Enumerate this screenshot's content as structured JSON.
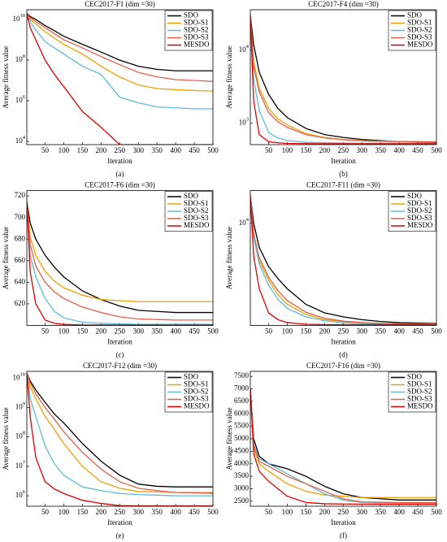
{
  "chart_data": [
    {
      "type": "line",
      "title": "CEC2017-F1 (dim =30)",
      "xlabel": "Iteration",
      "ylabel": "Average fitness value",
      "caption": "(a)",
      "yscale": "log",
      "legend": "upper right",
      "xlim": [
        1,
        500
      ],
      "xticks": [
        50,
        100,
        150,
        200,
        250,
        300,
        350,
        400,
        450,
        500
      ],
      "ylim": [
        7000,
        30000000000
      ],
      "yticks": [
        {
          "value": 10000,
          "label": "10^4"
        },
        {
          "value": 1000000,
          "label": "10^6"
        },
        {
          "value": 100000000,
          "label": "10^8"
        },
        {
          "value": 10000000000,
          "label": "10^10"
        }
      ],
      "x": [
        1,
        10,
        25,
        50,
        75,
        100,
        150,
        200,
        250,
        300,
        350,
        400,
        450,
        500
      ],
      "series": [
        {
          "name": "SDO",
          "color": "#000000",
          "values": [
            20000000000.0,
            14000000000.0,
            10000000000.0,
            5000000000.0,
            2800000000.0,
            1500000000.0,
            600000000.0,
            250000000.0,
            100000000.0,
            50000000.0,
            35000000.0,
            30000000.0,
            30000000.0,
            30000000.0
          ]
        },
        {
          "name": "SDO-S1",
          "color": "#f0a000",
          "values": [
            20000000000.0,
            10000000000.0,
            6000000000.0,
            2500000000.0,
            1200000000.0,
            600000000.0,
            200000000.0,
            50000000.0,
            15000000.0,
            6000000.0,
            4000000.0,
            3500000.0,
            3200000.0,
            3000000.0
          ]
        },
        {
          "name": "SDO-S2",
          "color": "#5bbcd6",
          "values": [
            20000000000.0,
            8000000000.0,
            3000000000.0,
            800000000.0,
            400000000.0,
            200000000.0,
            50000000.0,
            20000000.0,
            1500000.0,
            800000.0,
            500000.0,
            450000.0,
            400000.0,
            400000.0
          ]
        },
        {
          "name": "SDO-S3",
          "color": "#e0604a",
          "values": [
            20000000000.0,
            12000000000.0,
            8000000000.0,
            4000000000.0,
            2000000000.0,
            1000000000.0,
            400000000.0,
            150000000.0,
            60000000.0,
            25000000.0,
            15000000.0,
            11000000.0,
            10000000.0,
            9000000.0
          ]
        },
        {
          "name": "MESDO",
          "color": "#e00000",
          "values": [
            20000000000.0,
            4000000000.0,
            1000000000.0,
            100000000.0,
            20000000.0,
            5000000.0,
            300000.0,
            50000.0,
            7000.0,
            7000.0,
            7000.0,
            7000.0,
            7000.0,
            7000.0
          ]
        }
      ]
    },
    {
      "type": "line",
      "title": "CEC2017-F4 (dim =30)",
      "xlabel": "Iteration",
      "ylabel": "Average fitness value",
      "caption": "(b)",
      "yscale": "log",
      "legend": "upper right",
      "xlim": [
        1,
        500
      ],
      "xticks": [
        50,
        100,
        150,
        200,
        250,
        300,
        350,
        400,
        450,
        500
      ],
      "ylim": [
        510,
        36000
      ],
      "yticks": [
        {
          "value": 1000,
          "label": "10^3"
        },
        {
          "value": 10000,
          "label": "10^4"
        }
      ],
      "x": [
        1,
        10,
        25,
        50,
        75,
        100,
        150,
        200,
        250,
        300,
        350,
        400,
        450,
        500
      ],
      "series": [
        {
          "name": "SDO",
          "color": "#000000",
          "values": [
            30000,
            12000,
            5000,
            2500,
            1600,
            1200,
            850,
            700,
            640,
            600,
            580,
            560,
            555,
            550
          ]
        },
        {
          "name": "SDO-S1",
          "color": "#f0a000",
          "values": [
            30000,
            7000,
            3000,
            1600,
            1150,
            950,
            720,
            640,
            600,
            580,
            570,
            565,
            562,
            560
          ]
        },
        {
          "name": "SDO-S2",
          "color": "#5bbcd6",
          "values": [
            30000,
            4000,
            1500,
            750,
            630,
            580,
            550,
            540,
            535,
            532,
            530,
            530,
            530,
            530
          ]
        },
        {
          "name": "SDO-S3",
          "color": "#e0604a",
          "values": [
            30000,
            6000,
            2700,
            1400,
            1050,
            880,
            700,
            630,
            595,
            575,
            565,
            560,
            558,
            555
          ]
        },
        {
          "name": "MESDO",
          "color": "#e00000",
          "values": [
            30000,
            2000,
            700,
            560,
            540,
            530,
            527,
            525,
            525,
            525,
            525,
            525,
            525,
            525
          ]
        }
      ]
    },
    {
      "type": "line",
      "title": "CEC2017-F6 (dim =30)",
      "xlabel": "Iteration",
      "ylabel": "Average fitness value",
      "caption": "(c)",
      "yscale": "linear",
      "legend": "upper right",
      "xlim": [
        1,
        500
      ],
      "xticks": [
        50,
        100,
        150,
        200,
        250,
        300,
        350,
        400,
        450,
        500
      ],
      "ylim": [
        600,
        725
      ],
      "yticks": [
        620,
        640,
        660,
        680,
        700,
        720
      ],
      "x": [
        1,
        10,
        25,
        50,
        75,
        100,
        150,
        200,
        250,
        300,
        350,
        400,
        450,
        500
      ],
      "series": [
        {
          "name": "SDO",
          "color": "#000000",
          "values": [
            715,
            695,
            680,
            665,
            654,
            645,
            632,
            624,
            618,
            614,
            613,
            612,
            612,
            612
          ]
        },
        {
          "name": "SDO-S1",
          "color": "#f0a000",
          "values": [
            715,
            682,
            665,
            650,
            641,
            635,
            628,
            624,
            623,
            622,
            622,
            622,
            622,
            622
          ]
        },
        {
          "name": "SDO-S2",
          "color": "#5bbcd6",
          "values": [
            715,
            665,
            645,
            625,
            613,
            607,
            603,
            602,
            601.5,
            601,
            601,
            601,
            601,
            601
          ]
        },
        {
          "name": "SDO-S3",
          "color": "#e0604a",
          "values": [
            715,
            675,
            655,
            640,
            631,
            625,
            617,
            612,
            608,
            606,
            605.5,
            605,
            605,
            605
          ]
        },
        {
          "name": "MESDO",
          "color": "#e00000",
          "values": [
            715,
            650,
            620,
            605,
            602,
            601,
            600.5,
            600.5,
            600.5,
            600.5,
            600.5,
            600.5,
            600.5,
            600.5
          ]
        }
      ]
    },
    {
      "type": "line",
      "title": "CEC2017-F11 (dim =30)",
      "xlabel": "Iteration",
      "ylabel": "Average fitness value",
      "caption": "(d)",
      "yscale": "log",
      "legend": "upper right",
      "xlim": [
        1,
        500
      ],
      "xticks": [
        50,
        100,
        150,
        200,
        250,
        300,
        350,
        400,
        450,
        500
      ],
      "ylim": [
        1150,
        20000
      ],
      "yticks": [
        {
          "value": 10000,
          "label": "10^4"
        }
      ],
      "x": [
        1,
        10,
        25,
        50,
        75,
        100,
        150,
        200,
        250,
        300,
        350,
        400,
        450,
        500
      ],
      "series": [
        {
          "name": "SDO",
          "color": "#000000",
          "values": [
            18000,
            10000,
            6000,
            4000,
            3100,
            2500,
            1800,
            1500,
            1380,
            1300,
            1250,
            1220,
            1210,
            1200
          ]
        },
        {
          "name": "SDO-S1",
          "color": "#f0a000",
          "values": [
            18000,
            8000,
            4500,
            3000,
            2200,
            1800,
            1450,
            1300,
            1250,
            1220,
            1200,
            1190,
            1190,
            1190
          ]
        },
        {
          "name": "SDO-S2",
          "color": "#5bbcd6",
          "values": [
            18000,
            7500,
            4200,
            2700,
            2000,
            1650,
            1380,
            1270,
            1220,
            1200,
            1190,
            1180,
            1180,
            1180
          ]
        },
        {
          "name": "SDO-S3",
          "color": "#e0604a",
          "values": [
            18000,
            8000,
            4800,
            3200,
            2400,
            1950,
            1520,
            1340,
            1260,
            1220,
            1200,
            1190,
            1190,
            1190
          ]
        },
        {
          "name": "MESDO",
          "color": "#e00000",
          "values": [
            18000,
            5000,
            2500,
            1500,
            1300,
            1220,
            1180,
            1170,
            1170,
            1170,
            1170,
            1170,
            1170,
            1170
          ]
        }
      ]
    },
    {
      "type": "line",
      "title": "CEC2017-F12 (dim =30)",
      "xlabel": "Iteration",
      "ylabel": "Average fitness value",
      "caption": "(e)",
      "yscale": "log",
      "legend": "upper right",
      "xlim": [
        1,
        500
      ],
      "xticks": [
        50,
        100,
        150,
        200,
        250,
        300,
        350,
        400,
        450,
        500
      ],
      "ylim": [
        440000,
        17000000000
      ],
      "yticks": [
        {
          "value": 1000000,
          "label": "10^6"
        },
        {
          "value": 10000000,
          "label": "10^7"
        },
        {
          "value": 100000000,
          "label": "10^8"
        },
        {
          "value": 1000000000,
          "label": "10^9"
        },
        {
          "value": 10000000000,
          "label": "10^10"
        }
      ],
      "x": [
        1,
        10,
        25,
        50,
        75,
        100,
        150,
        200,
        250,
        300,
        350,
        400,
        450,
        500
      ],
      "series": [
        {
          "name": "SDO",
          "color": "#000000",
          "values": [
            15000000000.0,
            8000000000.0,
            4000000000.0,
            1500000000.0,
            600000000.0,
            300000000.0,
            60000000.0,
            15000000.0,
            5000000.0,
            2500000.0,
            2100000.0,
            2000000.0,
            2000000.0,
            2000000.0
          ]
        },
        {
          "name": "SDO-S1",
          "color": "#f0a000",
          "values": [
            15000000000.0,
            5000000000.0,
            2000000000.0,
            500000000.0,
            180000000.0,
            60000000.0,
            10000000.0,
            3000000.0,
            1800000.0,
            1400000.0,
            1350000.0,
            1300000.0,
            1300000.0,
            1300000.0
          ]
        },
        {
          "name": "SDO-S2",
          "color": "#5bbcd6",
          "values": [
            15000000000.0,
            2000000000.0,
            500000000.0,
            50000000.0,
            12000000.0,
            5000000.0,
            2000000.0,
            1500000.0,
            1200000.0,
            1100000.0,
            1050000.0,
            1000000.0,
            1000000.0,
            1000000.0
          ]
        },
        {
          "name": "SDO-S3",
          "color": "#e0604a",
          "values": [
            15000000000.0,
            7000000000.0,
            3000000000.0,
            1000000000.0,
            400000000.0,
            150000000.0,
            30000000.0,
            8000000.0,
            3000000.0,
            1800000.0,
            1500000.0,
            1300000.0,
            1250000.0,
            1200000.0
          ]
        },
        {
          "name": "MESDO",
          "color": "#e00000",
          "values": [
            15000000000.0,
            500000000.0,
            20000000.0,
            3000000.0,
            1700000.0,
            1200000.0,
            700000.0,
            550000.0,
            460000.0,
            450000.0,
            450000.0,
            450000.0,
            450000.0,
            450000.0
          ]
        }
      ]
    },
    {
      "type": "line",
      "title": "CEC2017-F16 (dim =30)",
      "xlabel": "Iteration",
      "ylabel": "Average fitness value",
      "caption": "(f)",
      "yscale": "linear",
      "legend": "upper right",
      "xlim": [
        1,
        500
      ],
      "xticks": [
        50,
        100,
        150,
        200,
        250,
        300,
        350,
        400,
        450,
        500
      ],
      "ylim": [
        2300,
        7700
      ],
      "yticks": [
        2500,
        3000,
        3500,
        4000,
        4500,
        5000,
        5500,
        6000,
        6500,
        7000,
        7500
      ],
      "x": [
        1,
        10,
        25,
        50,
        75,
        100,
        150,
        200,
        250,
        300,
        350,
        400,
        450,
        500
      ],
      "series": [
        {
          "name": "SDO",
          "color": "#000000",
          "values": [
            7000,
            5000,
            4300,
            4000,
            3900,
            3800,
            3500,
            3100,
            2800,
            2650,
            2600,
            2550,
            2550,
            2550
          ]
        },
        {
          "name": "SDO-S1",
          "color": "#f0a000",
          "values": [
            7000,
            4600,
            4000,
            3700,
            3450,
            3200,
            2900,
            2750,
            2700,
            2650,
            2650,
            2650,
            2650,
            2650
          ]
        },
        {
          "name": "SDO-S2",
          "color": "#5bbcd6",
          "values": [
            7000,
            4800,
            4200,
            4000,
            3800,
            3600,
            3200,
            2800,
            2550,
            2450,
            2430,
            2420,
            2420,
            2420
          ]
        },
        {
          "name": "SDO-S3",
          "color": "#e0604a",
          "values": [
            7000,
            4700,
            4100,
            3900,
            3700,
            3500,
            3200,
            2900,
            2600,
            2470,
            2460,
            2450,
            2450,
            2450
          ]
        },
        {
          "name": "MESDO",
          "color": "#e00000",
          "values": [
            7000,
            4400,
            3700,
            3300,
            3000,
            2700,
            2450,
            2400,
            2390,
            2385,
            2380,
            2380,
            2380,
            2380
          ]
        }
      ]
    }
  ]
}
